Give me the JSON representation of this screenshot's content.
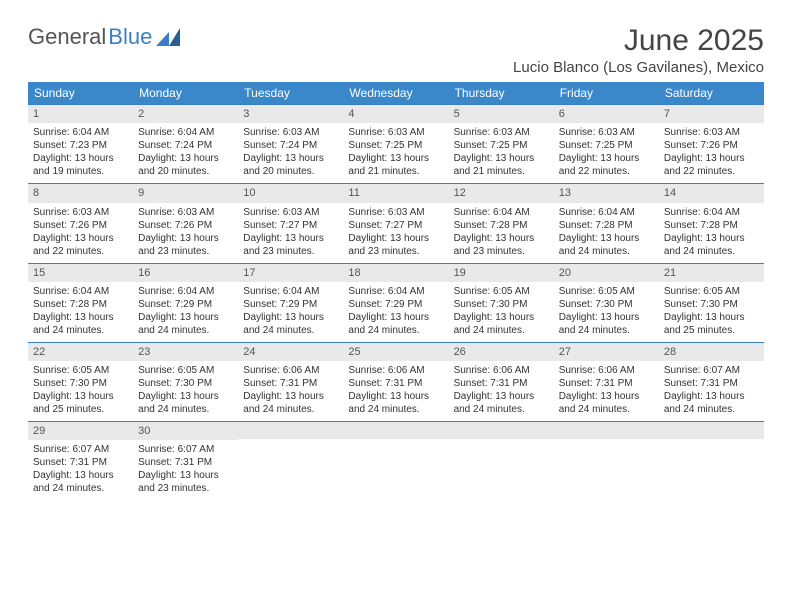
{
  "brand": {
    "part1": "General",
    "part2": "Blue"
  },
  "title": "June 2025",
  "location": "Lucio Blanco (Los Gavilanes), Mexico",
  "header_bg": "#3a88c9",
  "border_color": "#3a7fc4",
  "daynum_bg": "#e9e9e9",
  "weekdays": [
    "Sunday",
    "Monday",
    "Tuesday",
    "Wednesday",
    "Thursday",
    "Friday",
    "Saturday"
  ],
  "days": [
    {
      "n": "1",
      "sr": "6:04 AM",
      "ss": "7:23 PM",
      "dl": "13 hours and 19 minutes."
    },
    {
      "n": "2",
      "sr": "6:04 AM",
      "ss": "7:24 PM",
      "dl": "13 hours and 20 minutes."
    },
    {
      "n": "3",
      "sr": "6:03 AM",
      "ss": "7:24 PM",
      "dl": "13 hours and 20 minutes."
    },
    {
      "n": "4",
      "sr": "6:03 AM",
      "ss": "7:25 PM",
      "dl": "13 hours and 21 minutes."
    },
    {
      "n": "5",
      "sr": "6:03 AM",
      "ss": "7:25 PM",
      "dl": "13 hours and 21 minutes."
    },
    {
      "n": "6",
      "sr": "6:03 AM",
      "ss": "7:25 PM",
      "dl": "13 hours and 22 minutes."
    },
    {
      "n": "7",
      "sr": "6:03 AM",
      "ss": "7:26 PM",
      "dl": "13 hours and 22 minutes."
    },
    {
      "n": "8",
      "sr": "6:03 AM",
      "ss": "7:26 PM",
      "dl": "13 hours and 22 minutes."
    },
    {
      "n": "9",
      "sr": "6:03 AM",
      "ss": "7:26 PM",
      "dl": "13 hours and 23 minutes."
    },
    {
      "n": "10",
      "sr": "6:03 AM",
      "ss": "7:27 PM",
      "dl": "13 hours and 23 minutes."
    },
    {
      "n": "11",
      "sr": "6:03 AM",
      "ss": "7:27 PM",
      "dl": "13 hours and 23 minutes."
    },
    {
      "n": "12",
      "sr": "6:04 AM",
      "ss": "7:28 PM",
      "dl": "13 hours and 23 minutes."
    },
    {
      "n": "13",
      "sr": "6:04 AM",
      "ss": "7:28 PM",
      "dl": "13 hours and 24 minutes."
    },
    {
      "n": "14",
      "sr": "6:04 AM",
      "ss": "7:28 PM",
      "dl": "13 hours and 24 minutes."
    },
    {
      "n": "15",
      "sr": "6:04 AM",
      "ss": "7:28 PM",
      "dl": "13 hours and 24 minutes."
    },
    {
      "n": "16",
      "sr": "6:04 AM",
      "ss": "7:29 PM",
      "dl": "13 hours and 24 minutes."
    },
    {
      "n": "17",
      "sr": "6:04 AM",
      "ss": "7:29 PM",
      "dl": "13 hours and 24 minutes."
    },
    {
      "n": "18",
      "sr": "6:04 AM",
      "ss": "7:29 PM",
      "dl": "13 hours and 24 minutes."
    },
    {
      "n": "19",
      "sr": "6:05 AM",
      "ss": "7:30 PM",
      "dl": "13 hours and 24 minutes."
    },
    {
      "n": "20",
      "sr": "6:05 AM",
      "ss": "7:30 PM",
      "dl": "13 hours and 24 minutes."
    },
    {
      "n": "21",
      "sr": "6:05 AM",
      "ss": "7:30 PM",
      "dl": "13 hours and 25 minutes."
    },
    {
      "n": "22",
      "sr": "6:05 AM",
      "ss": "7:30 PM",
      "dl": "13 hours and 25 minutes."
    },
    {
      "n": "23",
      "sr": "6:05 AM",
      "ss": "7:30 PM",
      "dl": "13 hours and 24 minutes."
    },
    {
      "n": "24",
      "sr": "6:06 AM",
      "ss": "7:31 PM",
      "dl": "13 hours and 24 minutes."
    },
    {
      "n": "25",
      "sr": "6:06 AM",
      "ss": "7:31 PM",
      "dl": "13 hours and 24 minutes."
    },
    {
      "n": "26",
      "sr": "6:06 AM",
      "ss": "7:31 PM",
      "dl": "13 hours and 24 minutes."
    },
    {
      "n": "27",
      "sr": "6:06 AM",
      "ss": "7:31 PM",
      "dl": "13 hours and 24 minutes."
    },
    {
      "n": "28",
      "sr": "6:07 AM",
      "ss": "7:31 PM",
      "dl": "13 hours and 24 minutes."
    },
    {
      "n": "29",
      "sr": "6:07 AM",
      "ss": "7:31 PM",
      "dl": "13 hours and 24 minutes."
    },
    {
      "n": "30",
      "sr": "6:07 AM",
      "ss": "7:31 PM",
      "dl": "13 hours and 23 minutes."
    }
  ],
  "labels": {
    "sunrise": "Sunrise: ",
    "sunset": "Sunset: ",
    "daylight": "Daylight: "
  }
}
